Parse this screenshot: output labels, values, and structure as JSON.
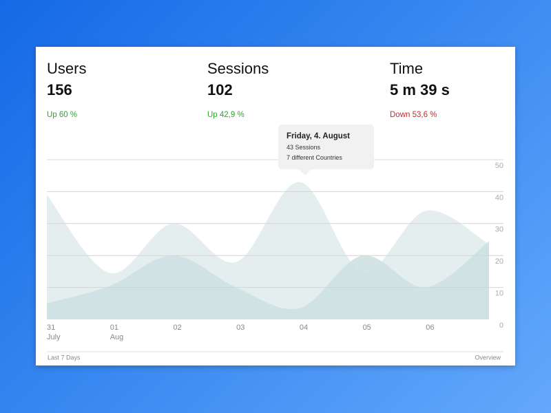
{
  "stats": [
    {
      "label": "Users",
      "value": "156",
      "change": "Up 60 %",
      "trend": "up"
    },
    {
      "label": "Sessions",
      "value": "102",
      "change": "Up 42,9 %",
      "trend": "up"
    },
    {
      "label": "Time",
      "value": "5 m 39 s",
      "change": "Down 53,6 %",
      "trend": "down"
    }
  ],
  "chart_data": {
    "type": "area",
    "categories": [
      "31",
      "01",
      "02",
      "03",
      "04",
      "05",
      "06",
      null
    ],
    "category_months": [
      "July",
      "Aug",
      null,
      null,
      null,
      null,
      null,
      null
    ],
    "series": [
      {
        "color": "#e4eeee",
        "values": [
          39,
          14.5,
          30,
          18,
          43,
          15,
          34,
          23.5
        ]
      },
      {
        "color": "#cddfe0",
        "values": [
          5,
          10.5,
          20,
          10,
          3.5,
          20,
          10,
          24.5
        ]
      }
    ],
    "ylim": [
      0,
      50
    ],
    "yticks": [
      0,
      10,
      20,
      30,
      40,
      50
    ],
    "grid": true,
    "tooltip": {
      "title": "Friday, 4. August",
      "lines": [
        "43 Sessions",
        "7 different Countries"
      ]
    }
  },
  "footer": {
    "left": "Last 7 Days",
    "right": "Overview"
  }
}
